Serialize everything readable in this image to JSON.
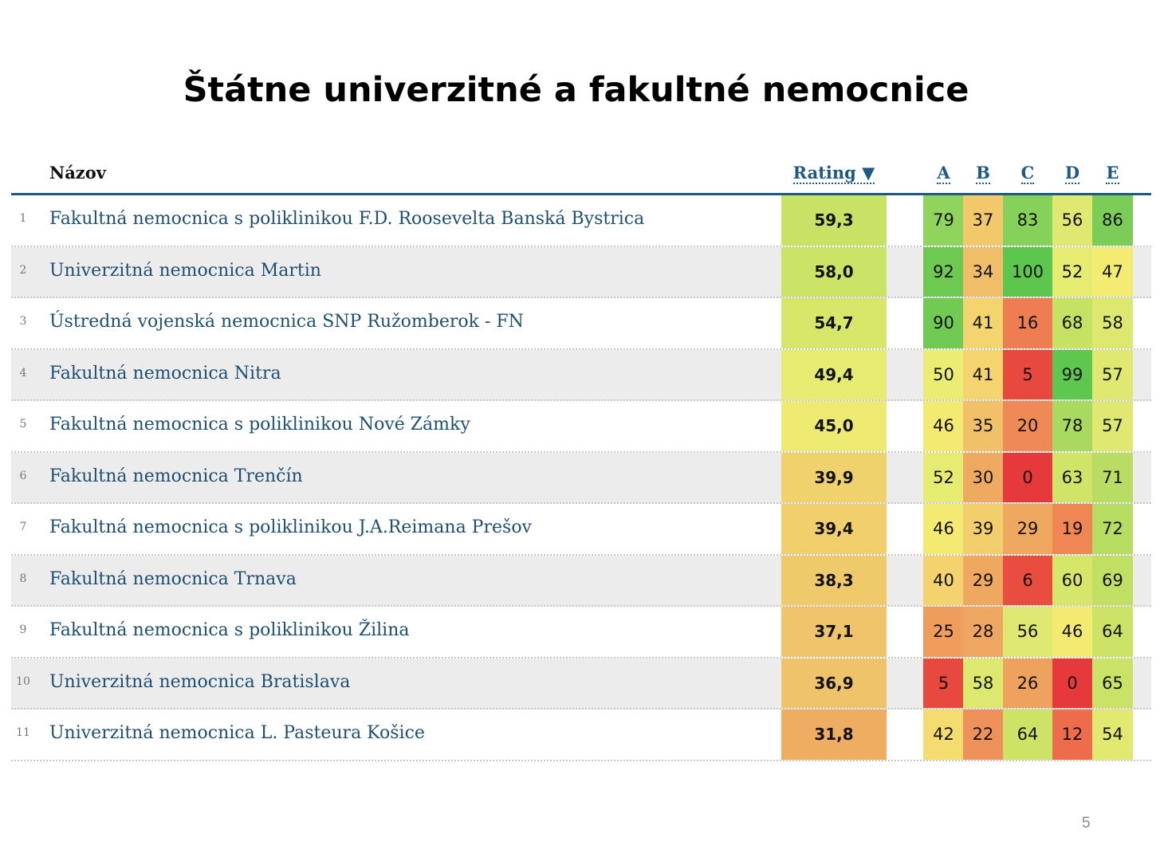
{
  "title": "Štátne univerzitné a fakultné nemocnice",
  "page_number": "5",
  "headers": {
    "name": "Názov",
    "rating": "Rating ▼",
    "criteria": [
      "A",
      "B",
      "C",
      "D",
      "E"
    ]
  },
  "rows": [
    {
      "rank": "1",
      "name": "Fakultná nemocnica s poliklinikou F.D. Roosevelta Banská Bystrica",
      "rating": "59,3",
      "rating_color": "#c8e265",
      "scores": [
        "79",
        "37",
        "83",
        "56",
        "86"
      ],
      "colors": [
        "#8fd45c",
        "#f2c86b",
        "#86d15a",
        "#dfe870",
        "#7ccd58"
      ]
    },
    {
      "rank": "2",
      "name": "Univerzitná nemocnica Martin",
      "rating": "58,0",
      "rating_color": "#cbe466",
      "scores": [
        "92",
        "34",
        "100",
        "52",
        "47"
      ],
      "colors": [
        "#6dc952",
        "#f0bd68",
        "#5cc64d",
        "#e6eb72",
        "#f3ec72"
      ]
    },
    {
      "rank": "3",
      "name": "Ústredná vojenská nemocnica SNP Ružomberok - FN",
      "rating": "54,7",
      "rating_color": "#d7e76a",
      "scores": [
        "90",
        "41",
        "16",
        "68",
        "58"
      ],
      "colors": [
        "#71ca53",
        "#f4d46e",
        "#ee7e52",
        "#c6e264",
        "#dde86f"
      ]
    },
    {
      "rank": "4",
      "name": "Fakultná nemocnica Nitra",
      "rating": "49,4",
      "rating_color": "#e6eb72",
      "scores": [
        "50",
        "41",
        "5",
        "99",
        "57"
      ],
      "colors": [
        "#eaec73",
        "#f4d46e",
        "#e8493f",
        "#5ec74e",
        "#dfe870"
      ]
    },
    {
      "rank": "5",
      "name": "Fakultná nemocnica s poliklinikou Nové Zámky",
      "rating": "45,0",
      "rating_color": "#efea72",
      "scores": [
        "46",
        "35",
        "20",
        "78",
        "57"
      ],
      "colors": [
        "#f3ea71",
        "#f1c169",
        "#ef8a56",
        "#a9d95e",
        "#dfe870"
      ]
    },
    {
      "rank": "6",
      "name": "Fakultná nemocnica Trenčín",
      "rating": "39,9",
      "rating_color": "#f0d26d",
      "scores": [
        "52",
        "30",
        "0",
        "63",
        "71"
      ],
      "colors": [
        "#e6eb72",
        "#efaa62",
        "#e6393b",
        "#d0e468",
        "#b9dd62"
      ]
    },
    {
      "rank": "7",
      "name": "Fakultná nemocnica s poliklinikou J.A.Reimana Prešov",
      "rating": "39,4",
      "rating_color": "#f0cf6c",
      "scores": [
        "46",
        "39",
        "29",
        "19",
        "72"
      ],
      "colors": [
        "#f3ea71",
        "#f3ce6d",
        "#efa860",
        "#ef8654",
        "#b7dc62"
      ]
    },
    {
      "rank": "8",
      "name": "Fakultná nemocnica Trnava",
      "rating": "38,3",
      "rating_color": "#efca6b",
      "scores": [
        "40",
        "29",
        "6",
        "60",
        "69"
      ],
      "colors": [
        "#f4d26e",
        "#efa860",
        "#e84d40",
        "#d6e66b",
        "#c0df63"
      ]
    },
    {
      "rank": "9",
      "name": "Fakultná nemocnica s poliklinikou Žilina",
      "rating": "37,1",
      "rating_color": "#efc46a",
      "scores": [
        "25",
        "28",
        "56",
        "46",
        "64"
      ],
      "colors": [
        "#ef9c5c",
        "#efa660",
        "#dfe870",
        "#f3ea71",
        "#cce366"
      ]
    },
    {
      "rank": "10",
      "name": "Univerzitná nemocnica Bratislava",
      "rating": "36,9",
      "rating_color": "#efc36a",
      "scores": [
        "5",
        "58",
        "26",
        "0",
        "65"
      ],
      "colors": [
        "#e8493f",
        "#dde86f",
        "#efa15e",
        "#e6393b",
        "#cae366"
      ]
    },
    {
      "rank": "11",
      "name": "Univerzitná nemocnica L. Pasteura Košice",
      "rating": "31,8",
      "rating_color": "#efad62",
      "scores": [
        "42",
        "22",
        "64",
        "12",
        "54"
      ],
      "colors": [
        "#f4dc70",
        "#ef915a",
        "#cce366",
        "#ec6c4b",
        "#e2e971"
      ]
    }
  ]
}
